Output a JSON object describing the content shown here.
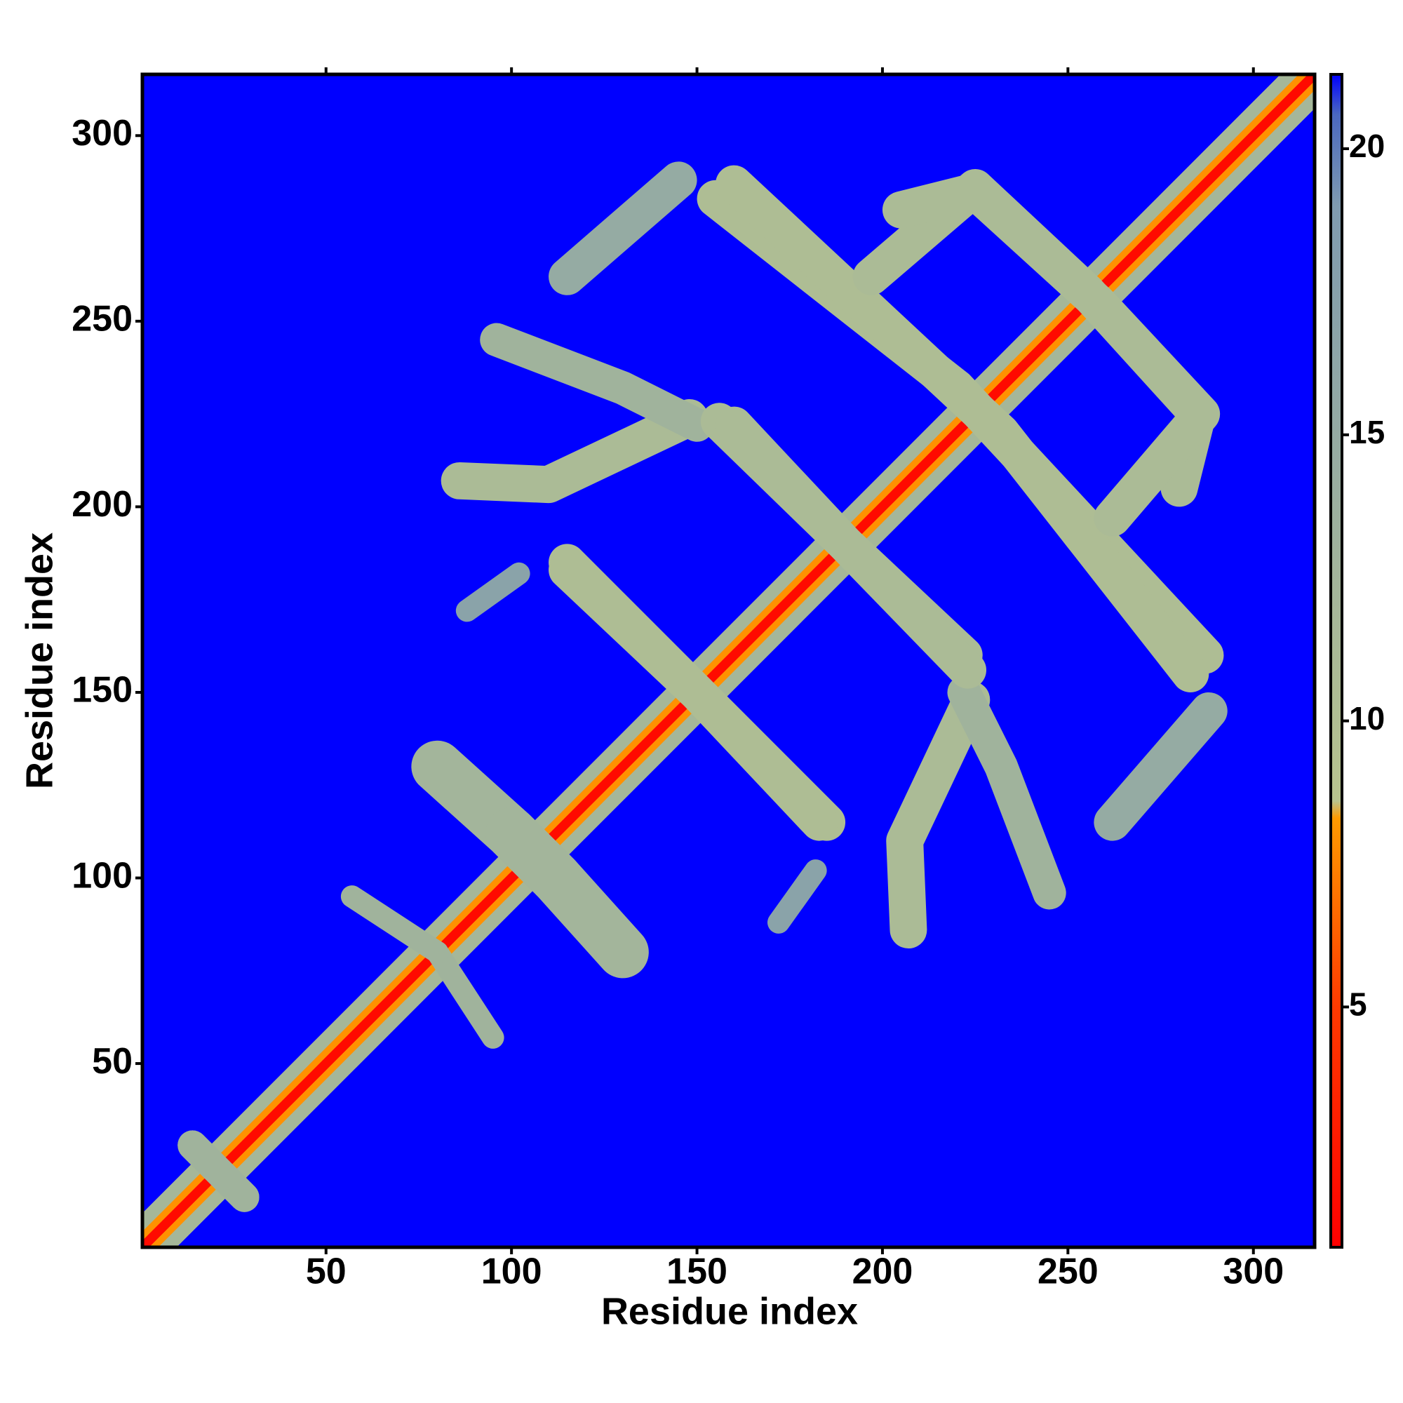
{
  "chart_data": {
    "type": "heatmap",
    "xlabel": "Residue index",
    "ylabel": "Residue index",
    "xlim": [
      0.5,
      316.5
    ],
    "ylim": [
      0.5,
      316.5
    ],
    "xticks": [
      50,
      100,
      150,
      200,
      250,
      300
    ],
    "yticks": [
      50,
      100,
      150,
      200,
      250,
      300
    ],
    "clim": [
      0.8,
      21.3
    ],
    "cticks": [
      5,
      10,
      15,
      20
    ],
    "colormap": [
      {
        "value": 0.8,
        "color": "#ff0000"
      },
      {
        "value": 5,
        "color": "#ff3a00"
      },
      {
        "value": 8.3,
        "color": "#ff9a00"
      },
      {
        "value": 8.6,
        "color": "#b8c48e"
      },
      {
        "value": 19,
        "color": "#7f9bb0"
      },
      {
        "value": 20.6,
        "color": "#4a68c0"
      },
      {
        "value": 21.3,
        "color": "#0000ff"
      }
    ],
    "background_value": 21.3,
    "symmetric": true,
    "features": [
      {
        "x": [
          1,
          316
        ],
        "y": [
          1,
          316
        ],
        "value": 12,
        "width": 13
      },
      {
        "x": [
          1,
          316
        ],
        "y": [
          1,
          316
        ],
        "value": 8,
        "width": 6
      },
      {
        "x": [
          1,
          316
        ],
        "y": [
          1,
          316
        ],
        "value": 1.5,
        "width": 2.5
      },
      {
        "x": [
          80,
          100,
          112
        ],
        "y": [
          130,
          112,
          100
        ],
        "value": 12.5,
        "width": 14
      },
      {
        "x": [
          115,
          150,
          185
        ],
        "y": [
          183,
          150,
          115
        ],
        "value": 10.5,
        "width": 10
      },
      {
        "x": [
          86,
          110,
          148
        ],
        "y": [
          207,
          206,
          224
        ],
        "value": 11,
        "width": 10
      },
      {
        "x": [
          96,
          130,
          150
        ],
        "y": [
          245,
          232,
          222
        ],
        "value": 13,
        "width": 9
      },
      {
        "x": [
          115,
          145
        ],
        "y": [
          262,
          288
        ],
        "value": 15,
        "width": 10
      },
      {
        "x": [
          88,
          102
        ],
        "y": [
          172,
          182
        ],
        "value": 17,
        "width": 6
      },
      {
        "x": [
          156,
          190,
          222
        ],
        "y": [
          223,
          190,
          160
        ],
        "value": 11,
        "width": 10
      },
      {
        "x": [
          155,
          220,
          287
        ],
        "y": [
          283,
          232,
          160
        ],
        "value": 10.5,
        "width": 10
      },
      {
        "x": [
          197,
          225,
          255,
          285,
          280
        ],
        "y": [
          262,
          286,
          258,
          225,
          205
        ],
        "value": 11,
        "width": 10
      },
      {
        "x": [
          80,
          95
        ],
        "y": [
          80,
          57
        ],
        "value": 13,
        "width": 6
      },
      {
        "x": [
          14,
          28
        ],
        "y": [
          28,
          14
        ],
        "value": 13,
        "width": 8
      }
    ]
  }
}
